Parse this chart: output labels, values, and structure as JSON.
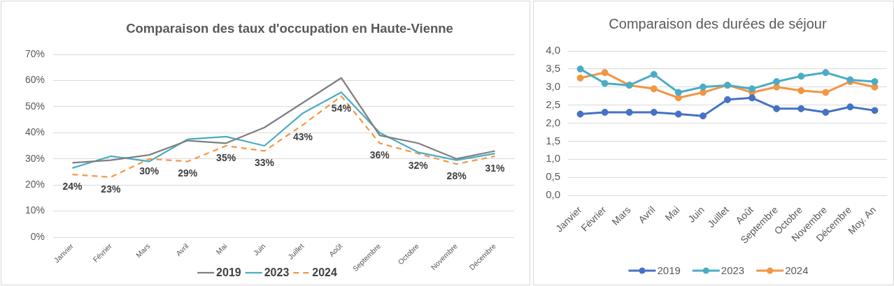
{
  "chart_data": [
    {
      "type": "line",
      "title": "Comparaison des taux d'occupation en Haute-Vienne",
      "categories": [
        "Janvier",
        "Février",
        "Mars",
        "Avril",
        "Mai",
        "Juin",
        "Juillet",
        "Août",
        "Septembre",
        "Octobre",
        "Novembre",
        "Décembre"
      ],
      "series": [
        {
          "name": "2019",
          "color": "#7f7f7f",
          "values": [
            28.5,
            29.5,
            31.5,
            37,
            36,
            42,
            51.5,
            61,
            39,
            36,
            30,
            33
          ]
        },
        {
          "name": "2023",
          "color": "#4bacc6",
          "values": [
            26.5,
            31,
            29,
            37.5,
            38.5,
            35,
            47.5,
            55.5,
            40,
            32.5,
            29.5,
            32
          ]
        },
        {
          "name": "2024",
          "color": "#f79646",
          "line_style": "dashed",
          "values": [
            24,
            23,
            30,
            29,
            35,
            33,
            43,
            54,
            36,
            32,
            28,
            31
          ],
          "value_labels": [
            "24%",
            "23%",
            "30%",
            "29%",
            "35%",
            "33%",
            "43%",
            "54%",
            "36%",
            "32%",
            "28%",
            "31%"
          ]
        }
      ],
      "ylim": [
        0,
        70
      ],
      "yticks": [
        {
          "value": 0,
          "label": "0%"
        },
        {
          "value": 10,
          "label": "10%"
        },
        {
          "value": 20,
          "label": "20%"
        },
        {
          "value": 30,
          "label": "30%"
        },
        {
          "value": 40,
          "label": "40%"
        },
        {
          "value": 50,
          "label": "50%"
        },
        {
          "value": 60,
          "label": "60%"
        },
        {
          "value": 70,
          "label": "70%"
        }
      ],
      "grid": "y",
      "legend": "bottom",
      "marker": "none",
      "line_style": "solid"
    },
    {
      "type": "line",
      "title": "Comparaison des durées de séjour",
      "categories": [
        "Janvier",
        "Février",
        "Mars",
        "Avril",
        "Mai",
        "Juin",
        "Juillet",
        "Août",
        "Septembre",
        "Octobre",
        "Novembre",
        "Décembre",
        "Moy. An"
      ],
      "series": [
        {
          "name": "2019",
          "color": "#4472c4",
          "values": [
            2.25,
            2.3,
            2.3,
            2.3,
            2.25,
            2.2,
            2.65,
            2.7,
            2.4,
            2.4,
            2.3,
            2.45,
            2.35
          ]
        },
        {
          "name": "2023",
          "color": "#4bacc6",
          "values": [
            3.5,
            3.1,
            3.05,
            3.35,
            2.85,
            3.0,
            3.05,
            2.95,
            3.15,
            3.3,
            3.4,
            3.2,
            3.15
          ]
        },
        {
          "name": "2024",
          "color": "#f39543",
          "values": [
            3.25,
            3.4,
            3.05,
            2.95,
            2.7,
            2.85,
            3.05,
            2.85,
            3.0,
            2.9,
            2.85,
            3.15,
            3.0
          ]
        }
      ],
      "ylim": [
        0,
        4
      ],
      "yticks": [
        {
          "value": 0,
          "label": "0,0"
        },
        {
          "value": 0.5,
          "label": "0,5"
        },
        {
          "value": 1,
          "label": "1,0"
        },
        {
          "value": 1.5,
          "label": "1,5"
        },
        {
          "value": 2,
          "label": "2,0"
        },
        {
          "value": 2.5,
          "label": "2,5"
        },
        {
          "value": 3,
          "label": "3,0"
        },
        {
          "value": 3.5,
          "label": "3,5"
        },
        {
          "value": 4,
          "label": "4,0"
        }
      ],
      "grid": "y",
      "legend": "bottom",
      "marker": "circle",
      "line_style": "solid"
    }
  ]
}
